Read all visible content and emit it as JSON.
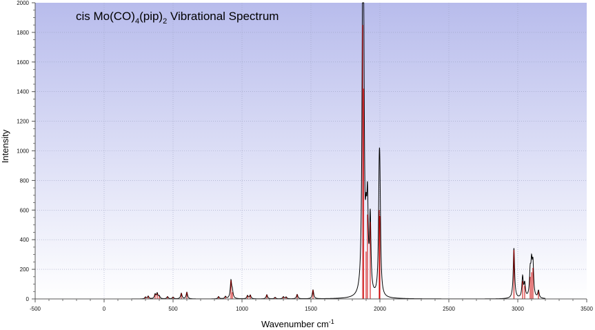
{
  "chart_data": {
    "type": "line",
    "title": {
      "base": "cis Mo(CO)",
      "sub1": "4",
      "mid": "(pip)",
      "sub2": "2",
      "tail": " Vibrational Spectrum"
    },
    "xlabel": {
      "base": "Wavenumber cm",
      "sup": "-1"
    },
    "ylabel": "Intensity",
    "xlim": [
      -500,
      3500
    ],
    "ylim": [
      0,
      2000
    ],
    "x_ticks": [
      "-500",
      "0",
      "500",
      "1000",
      "1500",
      "2000",
      "2500",
      "3000",
      "3500"
    ],
    "y_ticks": [
      "0",
      "200",
      "400",
      "600",
      "800",
      "1000",
      "1200",
      "1400",
      "1600",
      "1800",
      "2000"
    ],
    "grid": true,
    "colors": {
      "spectrum": "#000000",
      "sticks": "#cc0000",
      "bg_top": "#b8bcec",
      "bg_bottom": "#ffffff",
      "grid": "#9aa0c0",
      "axis": "#555555"
    },
    "series": [
      {
        "kind": "broadened-spectrum",
        "linewidth": 6,
        "peaks": [
          [
            300,
            12
          ],
          [
            320,
            18
          ],
          [
            370,
            30
          ],
          [
            385,
            36
          ],
          [
            400,
            18
          ],
          [
            460,
            15
          ],
          [
            500,
            12
          ],
          [
            560,
            38
          ],
          [
            600,
            45
          ],
          [
            830,
            15
          ],
          [
            880,
            15
          ],
          [
            920,
            118
          ],
          [
            930,
            45
          ],
          [
            1040,
            22
          ],
          [
            1060,
            25
          ],
          [
            1180,
            28
          ],
          [
            1240,
            10
          ],
          [
            1300,
            14
          ],
          [
            1320,
            12
          ],
          [
            1400,
            30
          ],
          [
            1515,
            60
          ],
          [
            1875,
            1700
          ],
          [
            1882,
            1400
          ],
          [
            1900,
            320
          ],
          [
            1910,
            550
          ],
          [
            1930,
            500
          ],
          [
            1995,
            620
          ],
          [
            2000,
            560
          ],
          [
            2972,
            340
          ],
          [
            3035,
            140
          ],
          [
            3050,
            90
          ],
          [
            3090,
            160
          ],
          [
            3100,
            200
          ],
          [
            3110,
            210
          ],
          [
            3150,
            50
          ]
        ]
      }
    ],
    "sticks": [
      [
        300,
        12
      ],
      [
        320,
        18
      ],
      [
        370,
        30
      ],
      [
        385,
        36
      ],
      [
        400,
        18
      ],
      [
        460,
        15
      ],
      [
        500,
        12
      ],
      [
        560,
        38
      ],
      [
        600,
        45
      ],
      [
        830,
        15
      ],
      [
        880,
        15
      ],
      [
        920,
        125
      ],
      [
        930,
        45
      ],
      [
        1040,
        22
      ],
      [
        1060,
        25
      ],
      [
        1180,
        28
      ],
      [
        1240,
        10
      ],
      [
        1300,
        14
      ],
      [
        1320,
        12
      ],
      [
        1400,
        30
      ],
      [
        1515,
        60
      ],
      [
        1875,
        1850
      ],
      [
        1882,
        1420
      ],
      [
        1900,
        320
      ],
      [
        1910,
        570
      ],
      [
        1930,
        520
      ],
      [
        1995,
        600
      ],
      [
        2000,
        560
      ],
      [
        2972,
        330
      ],
      [
        3035,
        120
      ],
      [
        3050,
        90
      ],
      [
        3090,
        150
      ],
      [
        3100,
        180
      ],
      [
        3110,
        210
      ],
      [
        3150,
        50
      ]
    ]
  }
}
